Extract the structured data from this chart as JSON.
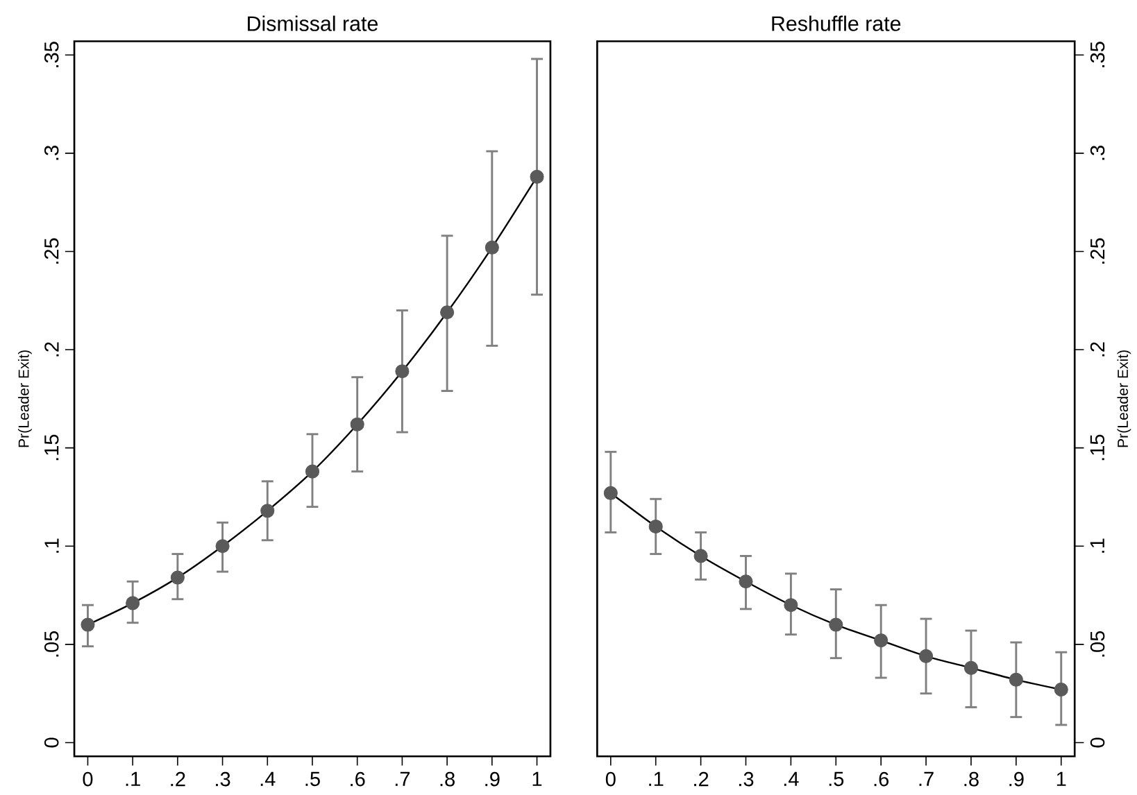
{
  "chart_data": [
    {
      "type": "line",
      "title": "Dismissal rate",
      "ylabel": "Pr(Leader Exit)",
      "x": [
        0,
        0.1,
        0.2,
        0.3,
        0.4,
        0.5,
        0.6,
        0.7,
        0.8,
        0.9,
        1
      ],
      "series": [
        {
          "color": "#5a5a5a",
          "values": [
            0.06,
            0.071,
            0.084,
            0.1,
            0.118,
            0.138,
            0.162,
            0.189,
            0.219,
            0.252,
            0.288
          ],
          "errors": [
            [
              0.049,
              0.07
            ],
            [
              0.061,
              0.082
            ],
            [
              0.073,
              0.096
            ],
            [
              0.087,
              0.112
            ],
            [
              0.103,
              0.133
            ],
            [
              0.12,
              0.157
            ],
            [
              0.138,
              0.186
            ],
            [
              0.158,
              0.22
            ],
            [
              0.179,
              0.258
            ],
            [
              0.202,
              0.301
            ],
            [
              0.228,
              0.348
            ]
          ]
        }
      ],
      "marker": "circle",
      "xlim": [
        -0.03,
        1.03
      ],
      "ylim": [
        -0.007,
        0.357
      ],
      "xticks": [
        0,
        {
          "value": 0.1,
          "label": ".1"
        },
        {
          "value": 0.2,
          "label": ".2"
        },
        {
          "value": 0.3,
          "label": ".3"
        },
        {
          "value": 0.4,
          "label": ".4"
        },
        {
          "value": 0.5,
          "label": ".5"
        },
        {
          "value": 0.6,
          "label": ".6"
        },
        {
          "value": 0.7,
          "label": ".7"
        },
        {
          "value": 0.8,
          "label": ".8"
        },
        {
          "value": 0.9,
          "label": ".9"
        },
        1
      ],
      "yticks": [
        0,
        {
          "value": 0.05,
          "label": ".05"
        },
        {
          "value": 0.1,
          "label": ".1"
        },
        {
          "value": 0.15,
          "label": ".15"
        },
        {
          "value": 0.2,
          "label": ".2"
        },
        {
          "value": 0.25,
          "label": ".25"
        },
        {
          "value": 0.3,
          "label": ".3"
        },
        {
          "value": 0.35,
          "label": ".35"
        }
      ],
      "grid": false
    },
    {
      "type": "line",
      "title": "Reshuffle rate",
      "ylabel": "Pr(Leader Exit)",
      "x": [
        0,
        0.1,
        0.2,
        0.3,
        0.4,
        0.5,
        0.6,
        0.7,
        0.8,
        0.9,
        1
      ],
      "series": [
        {
          "color": "#5a5a5a",
          "values": [
            0.127,
            0.11,
            0.095,
            0.082,
            0.07,
            0.06,
            0.052,
            0.044,
            0.038,
            0.032,
            0.027
          ],
          "errors": [
            [
              0.107,
              0.148
            ],
            [
              0.096,
              0.124
            ],
            [
              0.083,
              0.107
            ],
            [
              0.068,
              0.095
            ],
            [
              0.055,
              0.086
            ],
            [
              0.043,
              0.078
            ],
            [
              0.033,
              0.07
            ],
            [
              0.025,
              0.063
            ],
            [
              0.018,
              0.057
            ],
            [
              0.013,
              0.051
            ],
            [
              0.009,
              0.046
            ]
          ]
        }
      ],
      "marker": "circle",
      "xlim": [
        -0.03,
        1.03
      ],
      "ylim": [
        -0.007,
        0.357
      ],
      "xticks": [
        0,
        {
          "value": 0.1,
          "label": ".1"
        },
        {
          "value": 0.2,
          "label": ".2"
        },
        {
          "value": 0.3,
          "label": ".3"
        },
        {
          "value": 0.4,
          "label": ".4"
        },
        {
          "value": 0.5,
          "label": ".5"
        },
        {
          "value": 0.6,
          "label": ".6"
        },
        {
          "value": 0.7,
          "label": ".7"
        },
        {
          "value": 0.8,
          "label": ".8"
        },
        {
          "value": 0.9,
          "label": ".9"
        },
        1
      ],
      "yticks": [
        0,
        {
          "value": 0.05,
          "label": ".05"
        },
        {
          "value": 0.1,
          "label": ".1"
        },
        {
          "value": 0.15,
          "label": ".15"
        },
        {
          "value": 0.2,
          "label": ".2"
        },
        {
          "value": 0.25,
          "label": ".25"
        },
        {
          "value": 0.3,
          "label": ".3"
        },
        {
          "value": 0.35,
          "label": ".35"
        }
      ],
      "grid": false
    }
  ]
}
